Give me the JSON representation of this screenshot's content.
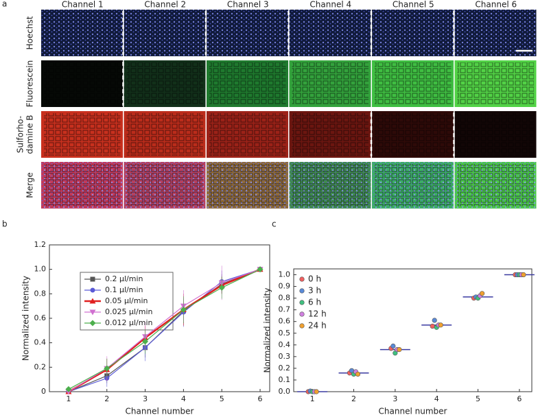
{
  "panel_a": {
    "label": "a",
    "columns": [
      "Channel 1",
      "Channel 2",
      "Channel 3",
      "Channel 4",
      "Channel 5",
      "Channel 6"
    ],
    "rows": [
      {
        "label": "Hoechst",
        "fills": [
          "#101a3a",
          "#101a3a",
          "#101a3a",
          "#101a3a",
          "#101a3a",
          "#101a3a"
        ],
        "dots": "#4a5ad8"
      },
      {
        "label": "Fluorescein",
        "fills": [
          "#060906",
          "#12301a",
          "#1f7a2e",
          "#33a23c",
          "#3fbe42",
          "#52d246"
        ]
      },
      {
        "label": [
          "Sulforho-",
          "damine B"
        ],
        "fills": [
          "#c8301e",
          "#bb2c1b",
          "#9c2218",
          "#6c1610",
          "#2e0a08",
          "#120606"
        ]
      },
      {
        "label": "Merge",
        "fills": [
          "#c23a5a",
          "#b5405e",
          "#8e6a3a",
          "#3f8a50",
          "#3cae64",
          "#4cc84a"
        ],
        "dots": "#6a70e0"
      }
    ]
  },
  "chart_data": [
    {
      "type": "line",
      "panel_label": "b",
      "x_label": "Channel number",
      "y_label": "Normalized intensity",
      "x": [
        1,
        2,
        3,
        4,
        5,
        6
      ],
      "xlim": [
        0.5,
        6.25
      ],
      "xticks": [
        1,
        2,
        3,
        4,
        5,
        6
      ],
      "ylim": [
        0,
        1.2
      ],
      "yticks": [
        0,
        0.2,
        0.4,
        0.6,
        0.8,
        {
          "value": 1.0,
          "label": "1.0"
        },
        1.2
      ],
      "legend": "upper left",
      "series": [
        {
          "name": "0.2 µl/min",
          "color": "#555555",
          "marker": "square",
          "values": [
            0,
            0.13,
            0.36,
            0.66,
            0.88,
            1.0
          ],
          "errors": [
            0.01,
            0.06,
            0.08,
            0.1,
            0.08,
            0.01
          ]
        },
        {
          "name": "0.1 µl/min",
          "color": "#5a5ad6",
          "marker": "circle",
          "values": [
            0,
            0.11,
            0.36,
            0.65,
            0.9,
            1.0
          ],
          "errors": [
            0.01,
            0.07,
            0.11,
            0.12,
            0.09,
            0.01
          ]
        },
        {
          "name": "0.05 µl/min",
          "color": "#e02020",
          "marker": "triangle",
          "values": [
            0,
            0.18,
            0.44,
            0.67,
            0.87,
            1.0
          ],
          "errors": [
            0.01,
            0.09,
            0.1,
            0.13,
            0.07,
            0.01
          ]
        },
        {
          "name": "0.025 µl/min",
          "color": "#d070d0",
          "marker": "triangle-down",
          "values": [
            0,
            0.19,
            0.45,
            0.7,
            0.89,
            1.0
          ],
          "errors": [
            0.01,
            0.1,
            0.12,
            0.13,
            0.14,
            0.01
          ]
        },
        {
          "name": "0.012 µl/min",
          "color": "#4caf4c",
          "marker": "diamond",
          "values": [
            0.02,
            0.19,
            0.41,
            0.67,
            0.85,
            1.0
          ],
          "errors": [
            0.02,
            0.08,
            0.1,
            0.11,
            0.09,
            0.01
          ]
        }
      ]
    },
    {
      "type": "scatter",
      "panel_label": "c",
      "x_label": "Channel number",
      "y_label": "Normalized intensity",
      "x": [
        1,
        2,
        3,
        4,
        5,
        6
      ],
      "xlim": [
        0.55,
        6.3
      ],
      "xticks": [
        1,
        2,
        3,
        4,
        5,
        6
      ],
      "ylim": [
        0,
        1.05
      ],
      "yticks": [
        {
          "value": 0,
          "label": "0.0"
        },
        0.1,
        0.2,
        0.3,
        0.4,
        0.5,
        0.6,
        0.7,
        0.8,
        0.9,
        {
          "value": 1.0,
          "label": "1.0"
        }
      ],
      "legend": "upper left",
      "means": [
        0,
        0.16,
        0.36,
        0.57,
        0.81,
        1.0
      ],
      "series": [
        {
          "name": "0 h",
          "color": "#f06060",
          "values": [
            0,
            0.16,
            0.37,
            0.56,
            0.8,
            1.0
          ]
        },
        {
          "name": "3 h",
          "color": "#5a8ad8",
          "values": [
            0.005,
            0.18,
            0.39,
            0.61,
            0.81,
            1.0
          ]
        },
        {
          "name": "6 h",
          "color": "#40c080",
          "values": [
            0,
            0.15,
            0.33,
            0.55,
            0.8,
            1.0
          ]
        },
        {
          "name": "12 h",
          "color": "#d080e0",
          "values": [
            0,
            0.17,
            0.36,
            0.57,
            0.82,
            1.0
          ]
        },
        {
          "name": "24 h",
          "color": "#f0a030",
          "values": [
            0,
            0.15,
            0.36,
            0.57,
            0.84,
            1.0
          ]
        }
      ]
    }
  ]
}
